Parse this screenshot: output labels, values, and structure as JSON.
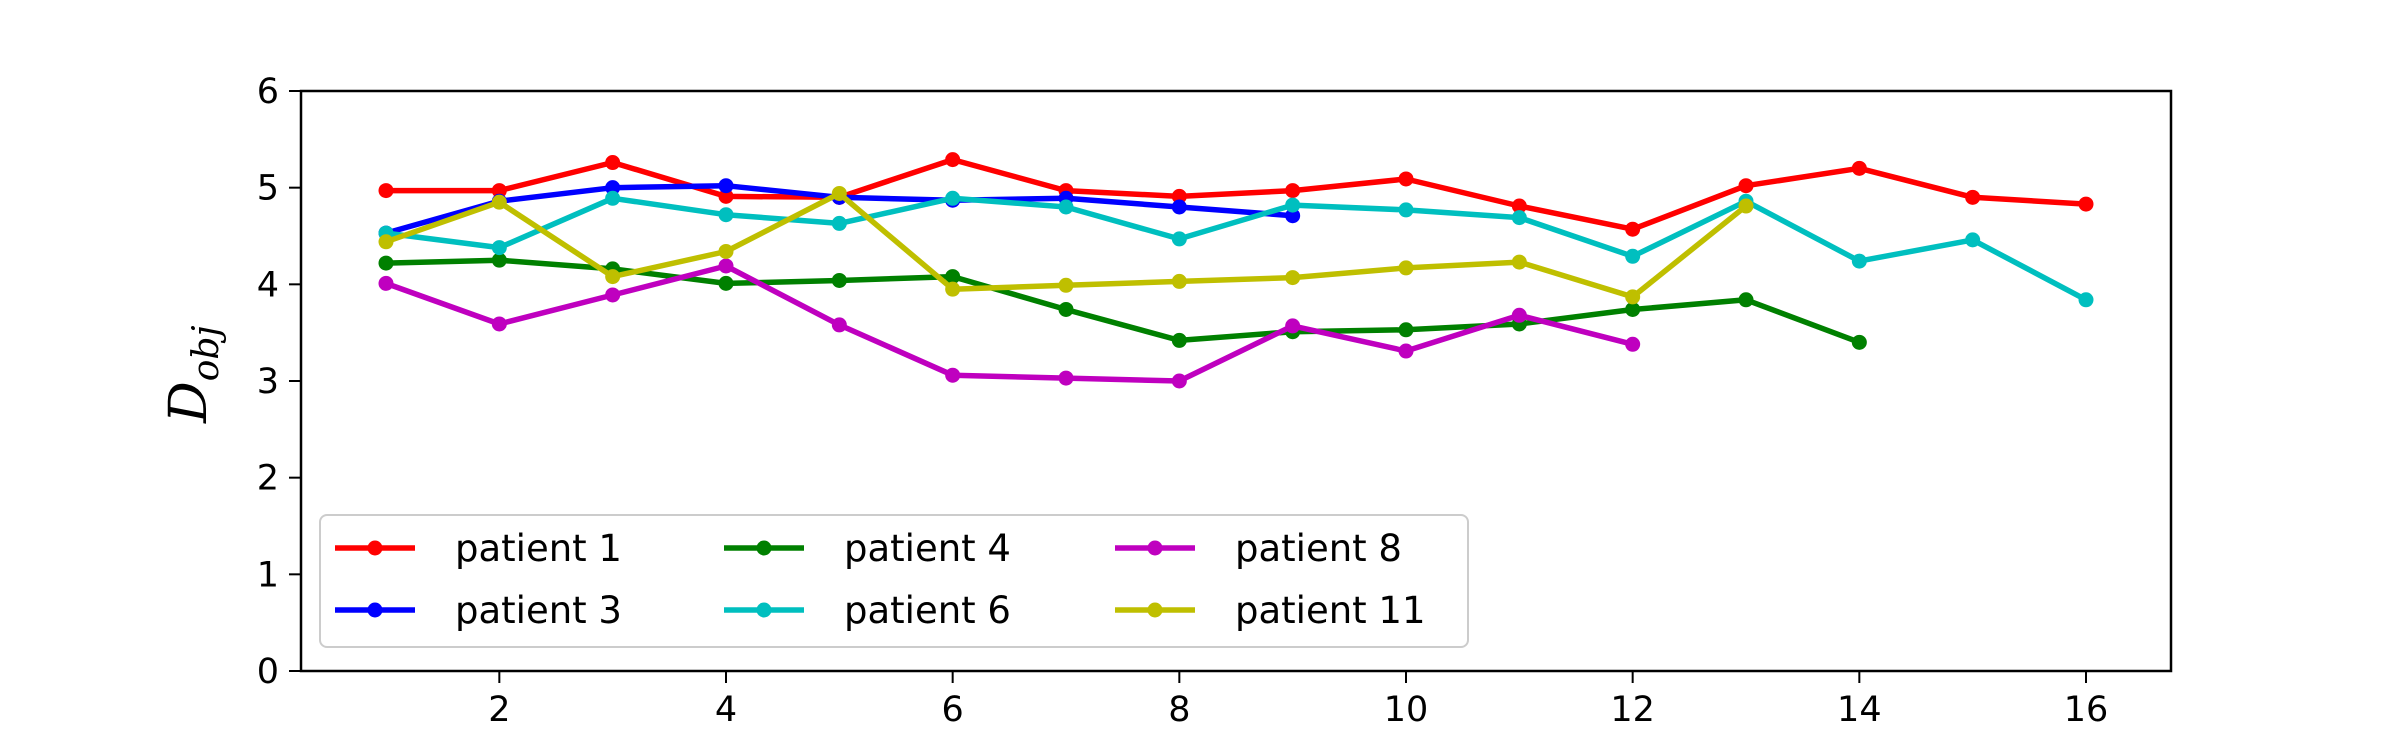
{
  "chart_data": {
    "type": "line",
    "title": "",
    "xlabel": "",
    "ylabel": "D",
    "ylabel_subscript": "obj",
    "xlim": [
      0.25,
      16.75
    ],
    "ylim": [
      0,
      6
    ],
    "xticks": [
      2,
      4,
      6,
      8,
      10,
      12,
      14,
      16
    ],
    "yticks": [
      0,
      1,
      2,
      3,
      4,
      5,
      6
    ],
    "grid": false,
    "legend_position": "lower-left",
    "legend_columns": 3,
    "series": [
      {
        "name": "patient 1",
        "color": "#ff0000",
        "x": [
          1,
          2,
          3,
          4,
          5,
          6,
          7,
          8,
          9,
          10,
          11,
          12,
          13,
          14,
          15,
          16
        ],
        "values": [
          4.97,
          4.97,
          5.26,
          4.91,
          4.9,
          5.29,
          4.97,
          4.91,
          4.97,
          5.09,
          4.81,
          4.57,
          5.02,
          5.2,
          4.9,
          4.83
        ]
      },
      {
        "name": "patient 3",
        "color": "#0000ff",
        "x": [
          1,
          2,
          3,
          4,
          5,
          6,
          7,
          8,
          9
        ],
        "values": [
          4.53,
          4.86,
          5.0,
          5.02,
          4.9,
          4.87,
          4.89,
          4.8,
          4.71
        ]
      },
      {
        "name": "patient 4",
        "color": "#008000",
        "x": [
          1,
          2,
          3,
          4,
          5,
          6,
          7,
          8,
          9,
          10,
          11,
          12,
          13,
          14
        ],
        "values": [
          4.22,
          4.25,
          4.16,
          4.01,
          4.04,
          4.08,
          3.74,
          3.42,
          3.51,
          3.53,
          3.59,
          3.74,
          3.84,
          3.4
        ]
      },
      {
        "name": "patient 6",
        "color": "#00bfbf",
        "x": [
          1,
          2,
          3,
          4,
          5,
          6,
          7,
          8,
          9,
          10,
          11,
          12,
          13,
          14,
          15,
          16
        ],
        "values": [
          4.53,
          4.38,
          4.89,
          4.72,
          4.63,
          4.89,
          4.8,
          4.47,
          4.82,
          4.77,
          4.69,
          4.29,
          4.86,
          4.24,
          4.46,
          3.84
        ]
      },
      {
        "name": "patient 8",
        "color": "#bf00bf",
        "x": [
          1,
          2,
          3,
          4,
          5,
          6,
          7,
          8,
          9,
          10,
          11,
          12
        ],
        "values": [
          4.01,
          3.59,
          3.89,
          4.19,
          3.58,
          3.06,
          3.03,
          3.0,
          3.57,
          3.31,
          3.68,
          3.38
        ]
      },
      {
        "name": "patient 11",
        "color": "#bfbf00",
        "x": [
          1,
          2,
          3,
          4,
          5,
          6,
          7,
          8,
          9,
          10,
          11,
          12,
          13
        ],
        "values": [
          4.44,
          4.85,
          4.08,
          4.34,
          4.94,
          3.95,
          3.99,
          4.03,
          4.07,
          4.17,
          4.23,
          3.87,
          4.81
        ]
      }
    ]
  }
}
